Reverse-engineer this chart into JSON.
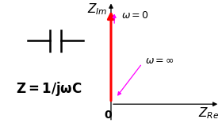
{
  "formula": "Z=1/jωC",
  "axis_label_re": "Z_{Re}",
  "axis_label_im": "Z_{Im}",
  "origin_label": "0",
  "omega_zero_label": "ω = 0",
  "omega_inf_label": "ω = ∞",
  "arrow_color": "#ff0000",
  "annotation_color": "#ff00ff",
  "capacitor_color": "black",
  "bg_color": "white",
  "formula_fontsize": 12,
  "axis_label_fontsize": 11,
  "annotation_fontsize": 9,
  "xlim": [
    0.0,
    1.0
  ],
  "ylim": [
    0.0,
    1.0
  ]
}
